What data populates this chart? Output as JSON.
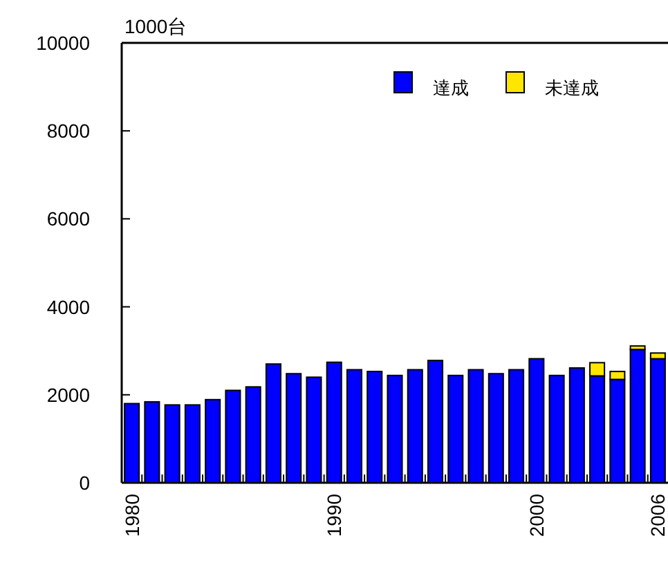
{
  "chart_data": {
    "type": "bar",
    "stacked": true,
    "ylabel": "1000台",
    "legend": "top right",
    "ylim": [
      0,
      10000
    ],
    "yticks": [
      0,
      2000,
      4000,
      6000,
      8000,
      10000
    ],
    "categories": [
      "1980",
      null,
      null,
      null,
      null,
      null,
      null,
      null,
      null,
      null,
      "1990",
      null,
      null,
      null,
      null,
      null,
      null,
      null,
      null,
      null,
      "2000",
      null,
      null,
      null,
      null,
      null,
      "2006"
    ],
    "series": [
      {
        "name": "達成",
        "color": "#0000ff",
        "values": [
          1800,
          1840,
          1770,
          1770,
          1890,
          2100,
          2180,
          2700,
          2480,
          2400,
          2740,
          2570,
          2530,
          2440,
          2570,
          2780,
          2440,
          2570,
          2480,
          2570,
          2820,
          2440,
          2610,
          2430,
          2350,
          3030,
          2820
        ]
      },
      {
        "name": "未達成",
        "color": "#ffe600",
        "values": [
          null,
          null,
          null,
          null,
          null,
          null,
          null,
          null,
          null,
          null,
          null,
          null,
          null,
          null,
          null,
          null,
          null,
          null,
          null,
          null,
          null,
          null,
          null,
          300,
          180,
          80,
          130
        ]
      }
    ]
  }
}
